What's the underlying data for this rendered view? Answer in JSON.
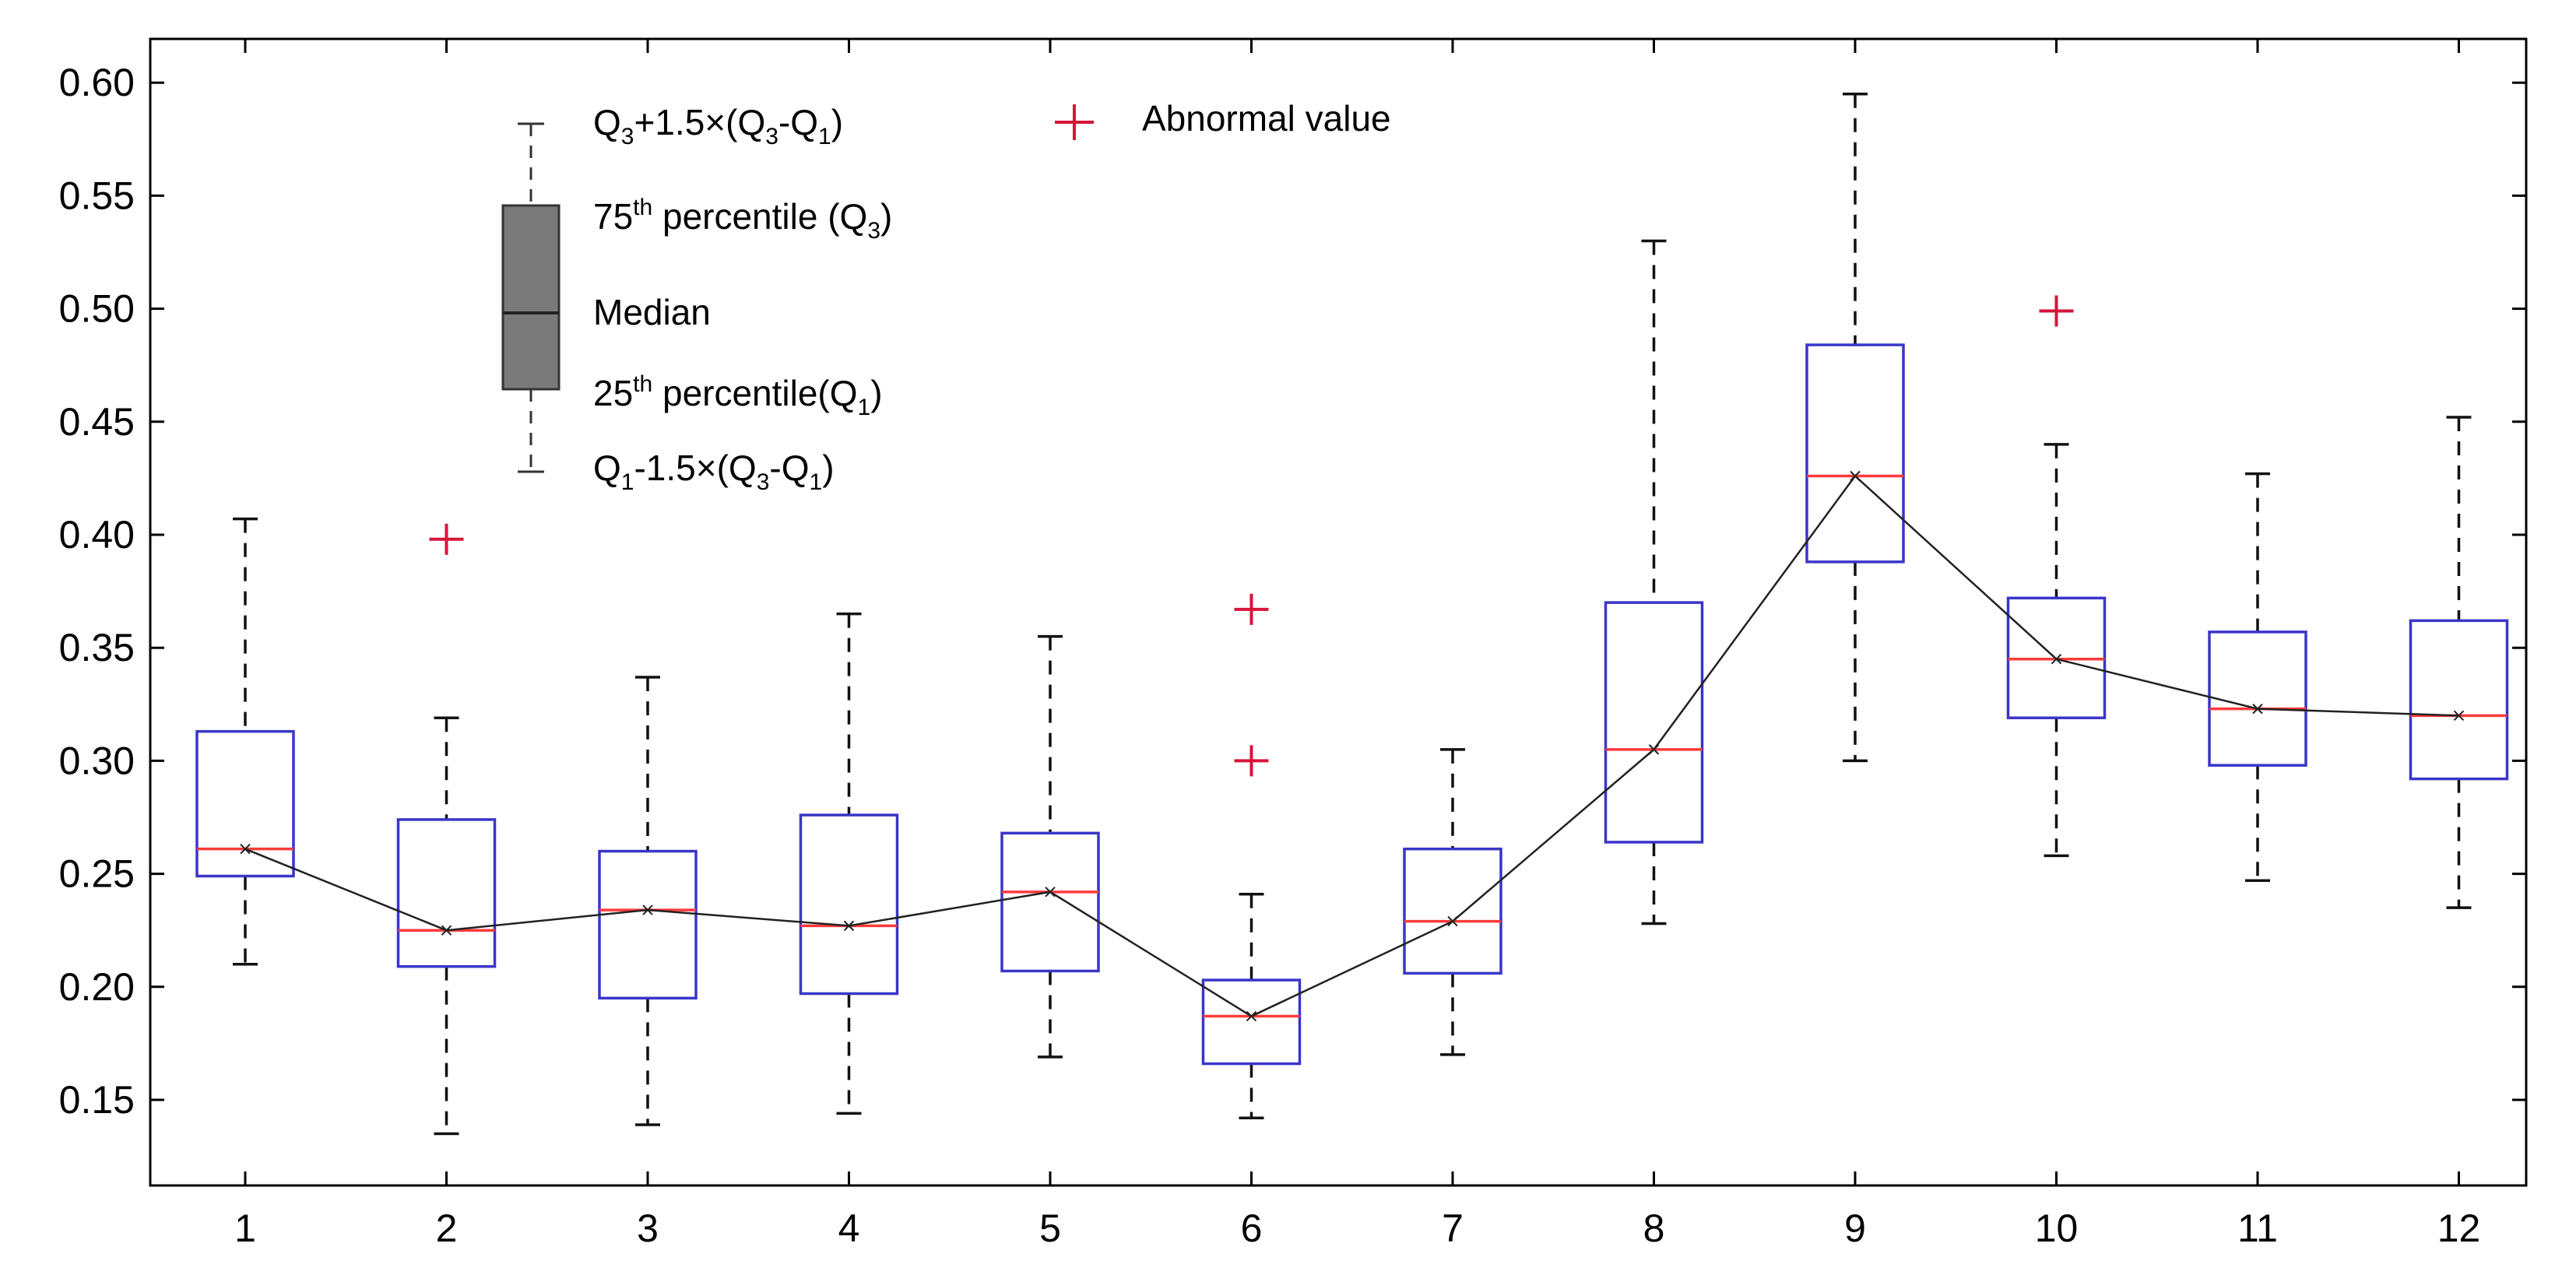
{
  "chart_data": {
    "type": "boxplot",
    "title": "",
    "xlabel": "",
    "ylabel": "",
    "categories": [
      "1",
      "2",
      "3",
      "4",
      "5",
      "6",
      "7",
      "8",
      "9",
      "10",
      "11",
      "12"
    ],
    "ylim": [
      0.115,
      0.625
    ],
    "yticks": [
      "0.15",
      "0.20",
      "0.25",
      "0.30",
      "0.35",
      "0.40",
      "0.45",
      "0.50",
      "0.55",
      "0.60"
    ],
    "boxes": [
      {
        "label": "1",
        "whisker_low": 0.21,
        "q1": 0.249,
        "median": 0.261,
        "q3": 0.313,
        "whisker_high": 0.407,
        "outliers": []
      },
      {
        "label": "2",
        "whisker_low": 0.135,
        "q1": 0.209,
        "median": 0.225,
        "q3": 0.274,
        "whisker_high": 0.319,
        "outliers": [
          0.398
        ]
      },
      {
        "label": "3",
        "whisker_low": 0.139,
        "q1": 0.195,
        "median": 0.234,
        "q3": 0.26,
        "whisker_high": 0.337,
        "outliers": []
      },
      {
        "label": "4",
        "whisker_low": 0.144,
        "q1": 0.197,
        "median": 0.227,
        "q3": 0.276,
        "whisker_high": 0.365,
        "outliers": []
      },
      {
        "label": "5",
        "whisker_low": 0.169,
        "q1": 0.207,
        "median": 0.242,
        "q3": 0.268,
        "whisker_high": 0.355,
        "outliers": []
      },
      {
        "label": "6",
        "whisker_low": 0.142,
        "q1": 0.166,
        "median": 0.187,
        "q3": 0.203,
        "whisker_high": 0.241,
        "outliers": [
          0.367,
          0.3
        ]
      },
      {
        "label": "7",
        "whisker_low": 0.17,
        "q1": 0.206,
        "median": 0.229,
        "q3": 0.261,
        "whisker_high": 0.305,
        "outliers": []
      },
      {
        "label": "8",
        "whisker_low": 0.228,
        "q1": 0.264,
        "median": 0.305,
        "q3": 0.37,
        "whisker_high": 0.53,
        "outliers": []
      },
      {
        "label": "9",
        "whisker_low": 0.3,
        "q1": 0.388,
        "median": 0.426,
        "q3": 0.484,
        "whisker_high": 0.595,
        "outliers": []
      },
      {
        "label": "10",
        "whisker_low": 0.258,
        "q1": 0.319,
        "median": 0.345,
        "q3": 0.372,
        "whisker_high": 0.44,
        "outliers": [
          0.499
        ]
      },
      {
        "label": "11",
        "whisker_low": 0.247,
        "q1": 0.298,
        "median": 0.323,
        "q3": 0.357,
        "whisker_high": 0.427,
        "outliers": []
      },
      {
        "label": "12",
        "whisker_low": 0.235,
        "q1": 0.292,
        "median": 0.32,
        "q3": 0.362,
        "whisker_high": 0.452,
        "outliers": []
      }
    ],
    "median_line": true,
    "grid": false,
    "legend": {
      "position": "top-left",
      "upper_whisker": {
        "base": "Q",
        "sub1": "3",
        "mid1": "+1.5×(Q",
        "sub2": "3",
        "mid2": "-Q",
        "sub3": "1",
        "tail": ")"
      },
      "q3": {
        "pre": "75",
        "sup": "th",
        "mid": " percentile (Q",
        "sub": "3",
        "tail": ")"
      },
      "median": "Median",
      "q1": {
        "pre": "25",
        "sup": "th",
        "mid": " percentile(Q",
        "sub": "1",
        "tail": ")"
      },
      "lower_whisker": {
        "base": "Q",
        "sub1": "1",
        "mid1": "-1.5×(Q",
        "sub2": "3",
        "mid2": "-Q",
        "sub3": "1",
        "tail": ")"
      },
      "outlier": "Abnormal value"
    },
    "colors": {
      "box": "#3b35c9",
      "median": "#ff3b3b",
      "whisker": "#111111",
      "outlier": "#d6153a",
      "legend_box": "#7a7a7a",
      "line": "#222222"
    }
  }
}
